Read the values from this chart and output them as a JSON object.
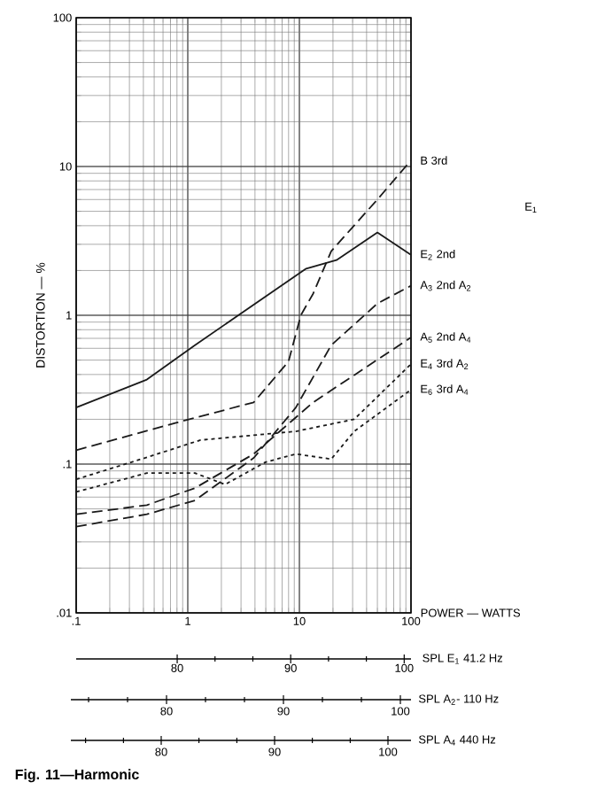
{
  "chart_data": [
    {
      "type": "line",
      "xlabel": "POWER — WATTS",
      "ylabel": "DISTORTION — %",
      "log": "xy",
      "grid": true,
      "marker": "none",
      "xlim": [
        0.1,
        100
      ],
      "ylim": [
        0.01,
        100
      ],
      "xticks": [
        {
          "value": 0.1,
          "label": ".1"
        },
        1,
        10,
        100
      ],
      "yticks": [
        {
          "value": 0.01,
          "label": ".01"
        },
        {
          "value": 0.1,
          "label": ".1"
        },
        1,
        10,
        100
      ],
      "x2lim": [
        71.1,
        100.6
      ],
      "x2ticks": [
        80,
        90,
        100
      ],
      "x2label": "SPL E$_{1}$ 41.2 Hz",
      "annotations": [
        "E$_{1}$",
        "Fig. 11—Harmonic"
      ],
      "series": [
        {
          "name": "B  3rd",
          "color": "#1a1a1a",
          "line_style": "dashed",
          "x": [
            0.1,
            0.8,
            3.9,
            8.0,
            10.3,
            13.3,
            19.3,
            50,
            100
          ],
          "values": [
            0.124,
            0.19,
            0.26,
            0.49,
            1.0,
            1.4,
            2.7,
            6.0,
            11
          ]
        },
        {
          "name": "E$_{2}$  2nd",
          "color": "#1a1a1a",
          "line_style": "solid",
          "x": [
            0.1,
            0.43,
            1.16,
            11.5,
            21.5,
            50,
            100
          ],
          "values": [
            0.24,
            0.37,
            0.63,
            2.06,
            2.35,
            3.6,
            2.55
          ]
        },
        {
          "name": "A$_{3}$  2nd A$_{2}$",
          "color": "#1a1a1a",
          "line_style": "dashed",
          "x": [
            0.1,
            0.43,
            1.16,
            3.9,
            9.3,
            19.3,
            50,
            100
          ],
          "values": [
            0.038,
            0.046,
            0.057,
            0.11,
            0.24,
            0.63,
            1.2,
            1.58
          ]
        },
        {
          "name": "A$_{5}$  2nd A$_{4}$",
          "color": "#1a1a1a",
          "line_style": "dashed",
          "x": [
            0.1,
            0.43,
            1.16,
            3.9,
            13.3,
            100
          ],
          "values": [
            0.046,
            0.053,
            0.069,
            0.117,
            0.26,
            0.71
          ]
        },
        {
          "name": "E$_{4}$  3rd A$_{2}$",
          "color": "#1a1a1a",
          "line_style": "dotted",
          "x": [
            0.1,
            0.43,
            1.3,
            9.3,
            31,
            100
          ],
          "values": [
            0.079,
            0.111,
            0.145,
            0.166,
            0.2,
            0.47
          ]
        },
        {
          "name": "E$_{6}$  3rd A$_{4}$",
          "color": "#1a1a1a",
          "line_style": "dotted",
          "x": [
            0.1,
            0.43,
            1.16,
            2.16,
            4.97,
            9.3,
            19.3,
            31,
            100
          ],
          "values": [
            0.065,
            0.087,
            0.087,
            0.073,
            0.103,
            0.117,
            0.108,
            0.166,
            0.316
          ]
        }
      ]
    },
    {
      "type": "other",
      "xlabel": "SPL A$_{2}$- 110 Hz",
      "annotations": [
        "80",
        "90",
        "100"
      ]
    },
    {
      "type": "other",
      "xlabel": "SPL A$_{4}$ 440 Hz",
      "annotations": [
        "80",
        "90",
        "100"
      ]
    }
  ]
}
